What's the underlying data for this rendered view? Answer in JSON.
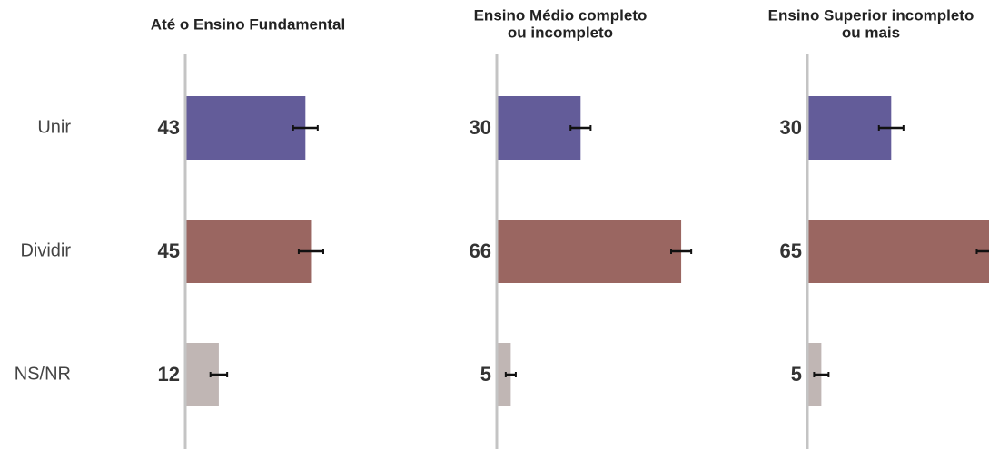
{
  "chart_data": [
    {
      "type": "bar",
      "title": [
        "Até o Ensino Fundamental"
      ],
      "categories": [
        "Unir",
        "Dividir",
        "NS/NR"
      ],
      "values": [
        43,
        45,
        12
      ],
      "errors": [
        4.4,
        4.4,
        3
      ],
      "colors": [
        "#635c99",
        "#9a6661",
        "#c0b6b4"
      ],
      "xlim": [
        0,
        65
      ]
    },
    {
      "type": "bar",
      "title": [
        "Ensino Médio completo",
        "ou incompleto"
      ],
      "values": [
        30,
        66,
        5
      ],
      "errors": [
        3.6,
        3.6,
        1.8
      ],
      "colors": [
        "#635c99",
        "#9a6661",
        "#c0b6b4"
      ],
      "xlim": [
        0,
        65
      ]
    },
    {
      "type": "bar",
      "title": [
        "Ensino Superior incompleto",
        "ou mais"
      ],
      "values": [
        30,
        65,
        5
      ],
      "errors": [
        4.4,
        4.4,
        2.6
      ],
      "colors": [
        "#635c99",
        "#9a6661",
        "#c0b6b4"
      ],
      "xlim": [
        0,
        65
      ]
    }
  ]
}
